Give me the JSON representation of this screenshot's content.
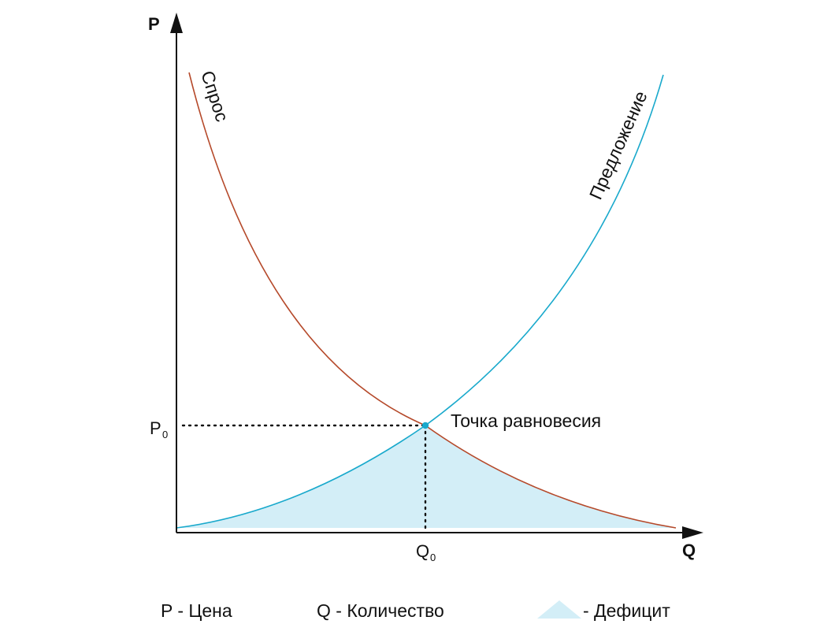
{
  "axes": {
    "y_label": "P",
    "x_label": "Q"
  },
  "ticks": {
    "price_main": "P",
    "price_sub": "0",
    "quantity_main": "Q",
    "quantity_sub": "0"
  },
  "curves": {
    "demand_label": "Спрос",
    "supply_label": "Предложение"
  },
  "equilibrium": {
    "label": "Точка равновесия"
  },
  "legend": {
    "price": "P - Цена",
    "quantity": "Q - Количество",
    "deficit": "- Дефицит"
  },
  "colors": {
    "demand": "#b5492a",
    "supply": "#19a9cc",
    "deficit_fill": "#d3eef7",
    "axis": "#111111",
    "equilibrium_point": "#19a9cc"
  }
}
